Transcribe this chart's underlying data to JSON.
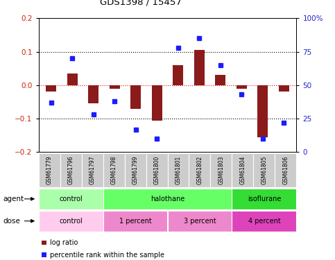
{
  "title": "GDS1398 / 15457",
  "samples": [
    "GSM61779",
    "GSM61796",
    "GSM61797",
    "GSM61798",
    "GSM61799",
    "GSM61800",
    "GSM61801",
    "GSM61802",
    "GSM61803",
    "GSM61804",
    "GSM61805",
    "GSM61806"
  ],
  "log_ratio": [
    -0.02,
    0.035,
    -0.055,
    -0.01,
    -0.07,
    -0.105,
    0.06,
    0.105,
    0.03,
    -0.01,
    -0.155,
    -0.02
  ],
  "percentile_rank": [
    37,
    70,
    28,
    38,
    17,
    10,
    78,
    85,
    65,
    43,
    10,
    22
  ],
  "ylim_left": [
    -0.2,
    0.2
  ],
  "ylim_right": [
    0,
    100
  ],
  "yticks_left": [
    -0.2,
    -0.1,
    0.0,
    0.1,
    0.2
  ],
  "yticks_right": [
    0,
    25,
    50,
    75,
    100
  ],
  "hlines": [
    -0.1,
    0.0,
    0.1
  ],
  "bar_color": "#8B1A1A",
  "dot_color": "#1C1CFF",
  "bar_width": 0.5,
  "agent_groups": [
    {
      "label": "control",
      "start": 0,
      "end": 3,
      "color": "#AAFFAA"
    },
    {
      "label": "halothane",
      "start": 3,
      "end": 9,
      "color": "#66FF66"
    },
    {
      "label": "isoflurane",
      "start": 9,
      "end": 12,
      "color": "#33DD33"
    }
  ],
  "dose_groups": [
    {
      "label": "control",
      "start": 0,
      "end": 3,
      "color": "#FFCCEE"
    },
    {
      "label": "1 percent",
      "start": 3,
      "end": 6,
      "color": "#EE88CC"
    },
    {
      "label": "3 percent",
      "start": 6,
      "end": 9,
      "color": "#EE88CC"
    },
    {
      "label": "4 percent",
      "start": 9,
      "end": 12,
      "color": "#DD44BB"
    }
  ],
  "tick_label_color_left": "#CC2200",
  "tick_label_color_right": "#2222CC",
  "background_plot": "#FFFFFF",
  "background_label": "#CCCCCC",
  "legend_log_ratio_color": "#8B1A1A",
  "legend_percentile_color": "#1C1CFF"
}
